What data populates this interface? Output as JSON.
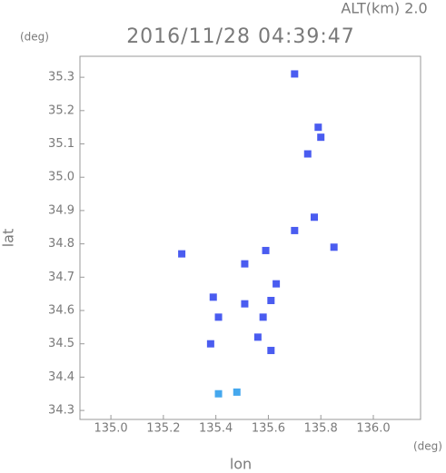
{
  "chart_data": {
    "type": "scatter",
    "annotation": "ALT(km) 2.0",
    "title": "2016/11/28 04:39:47",
    "y_unit": "(deg)",
    "x_unit": "(deg)",
    "x_label": "lon",
    "y_label": "lat",
    "xlim": [
      134.882,
      136.18
    ],
    "ylim": [
      34.273,
      35.363
    ],
    "xticks": [
      {
        "value": 135.0,
        "label": "135.0"
      },
      135.2,
      135.4,
      135.6,
      135.8,
      {
        "value": 136.0,
        "label": "136.0"
      }
    ],
    "yticks": [
      34.3,
      34.4,
      34.5,
      34.6,
      34.7,
      34.8,
      34.9,
      {
        "value": 35.0,
        "label": "35.0"
      },
      35.1,
      35.2,
      35.3
    ],
    "series": [
      {
        "color": "#4a5cf0",
        "x": [
          135.7,
          135.79,
          135.8,
          135.775,
          135.56,
          135.58,
          135.61,
          135.63,
          135.39,
          135.41,
          135.38,
          135.61,
          135.51,
          135.27,
          135.59,
          135.7,
          135.85,
          135.75,
          135.51
        ],
        "values": [
          35.31,
          35.15,
          35.12,
          34.88,
          34.52,
          34.58,
          34.63,
          34.68,
          34.64,
          34.58,
          34.5,
          34.48,
          34.62,
          34.77,
          34.78,
          34.84,
          34.79,
          35.07,
          34.74
        ]
      },
      {
        "color": "#45a8ee",
        "x": [
          135.41,
          135.48
        ],
        "values": [
          34.35,
          34.355
        ]
      }
    ]
  }
}
